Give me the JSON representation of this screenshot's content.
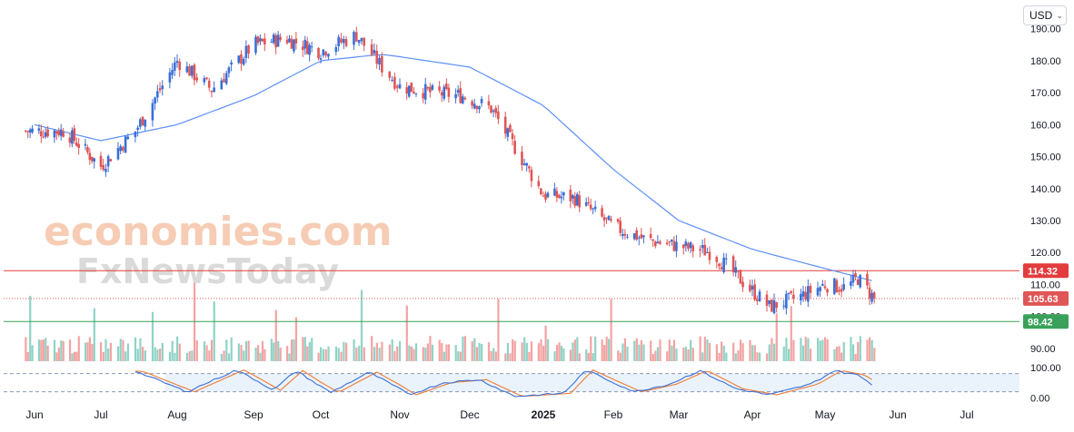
{
  "toolbar": {
    "currency": "USD"
  },
  "watermark": {
    "line1": "economies.com",
    "line2": "FxNewsToday"
  },
  "colors": {
    "up": "#3a6fd8",
    "down": "#e05555",
    "ma": "#5b8ff9",
    "resistance": "#e23c3c",
    "support": "#3aa15a",
    "current": "#e05555",
    "vol_up": "#8fd3c6",
    "vol_down": "#f3a3a3",
    "stoch_k": "#3a6fd8",
    "stoch_d": "#f07a33",
    "stoch_band": "#dcebfa"
  },
  "chart_data": [
    {
      "type": "candlestick",
      "title": "",
      "x_labels": [
        "Jun",
        "Jul",
        "Aug",
        "Sep",
        "Oct",
        "Nov",
        "Dec",
        "2025",
        "Feb",
        "Mar",
        "Apr",
        "May",
        "Jun",
        "Jul"
      ],
      "y_ticks": [
        90,
        100,
        110,
        120,
        130,
        140,
        150,
        160,
        170,
        180,
        190
      ],
      "ylim": [
        86,
        199
      ],
      "grid": false,
      "markers": [
        {
          "name": "resistance",
          "value": 114.32,
          "label": "114.32"
        },
        {
          "name": "current",
          "value": 105.63,
          "label": "105.63"
        },
        {
          "name": "support",
          "value": 98.42,
          "label": "98.42"
        }
      ],
      "series": [
        {
          "name": "",
          "kind": "close",
          "values": [
            {
              "date": "2024-06-01",
              "value": 158
            },
            {
              "date": "2024-06-15",
              "value": 158
            },
            {
              "date": "2024-07-01",
              "value": 147
            },
            {
              "date": "2024-07-15",
              "value": 158
            },
            {
              "date": "2024-08-01",
              "value": 180
            },
            {
              "date": "2024-08-15",
              "value": 171
            },
            {
              "date": "2024-09-01",
              "value": 185
            },
            {
              "date": "2024-09-15",
              "value": 187
            },
            {
              "date": "2024-10-01",
              "value": 183
            },
            {
              "date": "2024-10-15",
              "value": 188
            },
            {
              "date": "2024-10-25",
              "value": 178
            },
            {
              "date": "2024-11-01",
              "value": 172
            },
            {
              "date": "2024-11-15",
              "value": 170
            },
            {
              "date": "2024-11-28",
              "value": 169
            },
            {
              "date": "2024-12-10",
              "value": 165
            },
            {
              "date": "2024-12-24",
              "value": 148
            },
            {
              "date": "2025-01-01",
              "value": 138
            },
            {
              "date": "2025-01-15",
              "value": 137
            },
            {
              "date": "2025-02-01",
              "value": 128
            },
            {
              "date": "2025-02-15",
              "value": 124
            },
            {
              "date": "2025-03-01",
              "value": 122
            },
            {
              "date": "2025-03-15",
              "value": 120
            },
            {
              "date": "2025-04-01",
              "value": 108
            },
            {
              "date": "2025-04-08",
              "value": 103
            },
            {
              "date": "2025-04-20",
              "value": 106
            },
            {
              "date": "2025-05-01",
              "value": 110
            },
            {
              "date": "2025-05-10",
              "value": 109
            },
            {
              "date": "2025-05-15",
              "value": 112
            },
            {
              "date": "2025-05-22",
              "value": 105.63
            }
          ]
        },
        {
          "name": "",
          "kind": "moving_average",
          "values": [
            {
              "date": "2024-06-01",
              "value": 160
            },
            {
              "date": "2024-07-01",
              "value": 155
            },
            {
              "date": "2024-08-01",
              "value": 160
            },
            {
              "date": "2024-09-01",
              "value": 169
            },
            {
              "date": "2024-10-01",
              "value": 180
            },
            {
              "date": "2024-10-25",
              "value": 182
            },
            {
              "date": "2024-12-01",
              "value": 178
            },
            {
              "date": "2025-01-01",
              "value": 166
            },
            {
              "date": "2025-02-01",
              "value": 146
            },
            {
              "date": "2025-03-01",
              "value": 130
            },
            {
              "date": "2025-04-01",
              "value": 121
            },
            {
              "date": "2025-05-01",
              "value": 115
            },
            {
              "date": "2025-05-22",
              "value": 111
            }
          ]
        }
      ]
    },
    {
      "type": "line",
      "title": "",
      "y_ticks": [
        0,
        100
      ],
      "y_tick_labels": [
        "0.00",
        "100.00"
      ],
      "ylim": [
        -5,
        100
      ],
      "band": [
        20,
        80
      ],
      "series": [
        {
          "name": "",
          "values": [
            {
              "date": "2024-07-15",
              "value": 88
            },
            {
              "date": "2024-08-05",
              "value": 20
            },
            {
              "date": "2024-08-25",
              "value": 92
            },
            {
              "date": "2024-09-10",
              "value": 25
            },
            {
              "date": "2024-09-20",
              "value": 90
            },
            {
              "date": "2024-10-05",
              "value": 18
            },
            {
              "date": "2024-10-20",
              "value": 85
            },
            {
              "date": "2024-11-05",
              "value": 10
            },
            {
              "date": "2024-11-20",
              "value": 50
            },
            {
              "date": "2024-12-05",
              "value": 60
            },
            {
              "date": "2024-12-20",
              "value": 5
            },
            {
              "date": "2025-01-10",
              "value": 15
            },
            {
              "date": "2025-01-20",
              "value": 92
            },
            {
              "date": "2025-02-10",
              "value": 20
            },
            {
              "date": "2025-02-25",
              "value": 45
            },
            {
              "date": "2025-03-10",
              "value": 90
            },
            {
              "date": "2025-03-25",
              "value": 30
            },
            {
              "date": "2025-04-08",
              "value": 10
            },
            {
              "date": "2025-04-25",
              "value": 45
            },
            {
              "date": "2025-05-05",
              "value": 90
            },
            {
              "date": "2025-05-15",
              "value": 75
            },
            {
              "date": "2025-05-22",
              "value": 40
            }
          ]
        }
      ]
    }
  ]
}
